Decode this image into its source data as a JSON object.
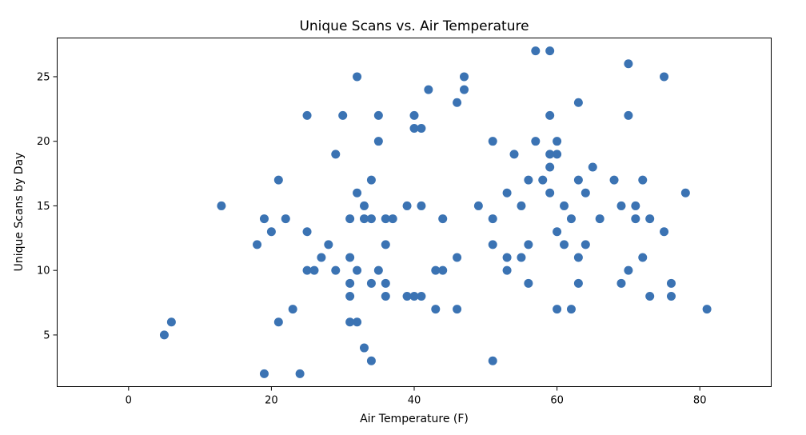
{
  "chart_data": {
    "type": "scatter",
    "title": "Unique Scans vs. Air Temperature",
    "xlabel": "Air Temperature (F)",
    "ylabel": "Unique Scans by Day",
    "xlim": [
      -10,
      90
    ],
    "ylim": [
      1,
      28
    ],
    "xticks": [
      0,
      20,
      40,
      60,
      80
    ],
    "yticks": [
      5,
      10,
      15,
      20,
      25
    ],
    "grid": false,
    "color": "#3b73b3",
    "series": [
      {
        "points": [
          [
            5,
            5
          ],
          [
            6,
            6
          ],
          [
            13,
            15
          ],
          [
            18,
            12
          ],
          [
            19,
            14
          ],
          [
            19,
            2
          ],
          [
            20,
            13
          ],
          [
            21,
            17
          ],
          [
            21,
            6
          ],
          [
            22,
            14
          ],
          [
            23,
            7
          ],
          [
            24,
            2
          ],
          [
            25,
            22
          ],
          [
            25,
            13
          ],
          [
            25,
            10
          ],
          [
            26,
            10
          ],
          [
            27,
            11
          ],
          [
            28,
            12
          ],
          [
            29,
            19
          ],
          [
            29,
            10
          ],
          [
            30,
            22
          ],
          [
            31,
            14
          ],
          [
            31,
            11
          ],
          [
            31,
            9
          ],
          [
            31,
            8
          ],
          [
            31,
            6
          ],
          [
            32,
            25
          ],
          [
            32,
            16
          ],
          [
            32,
            10
          ],
          [
            32,
            6
          ],
          [
            33,
            15
          ],
          [
            33,
            14
          ],
          [
            33,
            4
          ],
          [
            34,
            17
          ],
          [
            34,
            14
          ],
          [
            34,
            9
          ],
          [
            34,
            3
          ],
          [
            35,
            22
          ],
          [
            35,
            20
          ],
          [
            35,
            10
          ],
          [
            36,
            14
          ],
          [
            36,
            12
          ],
          [
            36,
            9
          ],
          [
            36,
            8
          ],
          [
            37,
            14
          ],
          [
            39,
            15
          ],
          [
            39,
            8
          ],
          [
            40,
            22
          ],
          [
            40,
            21
          ],
          [
            40,
            8
          ],
          [
            41,
            21
          ],
          [
            41,
            15
          ],
          [
            41,
            8
          ],
          [
            42,
            24
          ],
          [
            43,
            10
          ],
          [
            43,
            7
          ],
          [
            44,
            14
          ],
          [
            44,
            10
          ],
          [
            46,
            23
          ],
          [
            46,
            11
          ],
          [
            46,
            7
          ],
          [
            47,
            25
          ],
          [
            47,
            24
          ],
          [
            49,
            15
          ],
          [
            51,
            20
          ],
          [
            51,
            14
          ],
          [
            51,
            12
          ],
          [
            51,
            3
          ],
          [
            53,
            16
          ],
          [
            53,
            11
          ],
          [
            53,
            10
          ],
          [
            54,
            19
          ],
          [
            55,
            15
          ],
          [
            55,
            11
          ],
          [
            56,
            17
          ],
          [
            56,
            12
          ],
          [
            56,
            9
          ],
          [
            57,
            27
          ],
          [
            57,
            20
          ],
          [
            58,
            17
          ],
          [
            59,
            27
          ],
          [
            59,
            22
          ],
          [
            59,
            19
          ],
          [
            59,
            18
          ],
          [
            59,
            16
          ],
          [
            60,
            20
          ],
          [
            60,
            19
          ],
          [
            60,
            13
          ],
          [
            60,
            7
          ],
          [
            61,
            15
          ],
          [
            61,
            12
          ],
          [
            62,
            14
          ],
          [
            62,
            7
          ],
          [
            63,
            23
          ],
          [
            63,
            17
          ],
          [
            63,
            11
          ],
          [
            63,
            9
          ],
          [
            64,
            16
          ],
          [
            64,
            12
          ],
          [
            65,
            18
          ],
          [
            66,
            14
          ],
          [
            68,
            17
          ],
          [
            69,
            15
          ],
          [
            69,
            9
          ],
          [
            70,
            26
          ],
          [
            70,
            22
          ],
          [
            70,
            10
          ],
          [
            71,
            15
          ],
          [
            71,
            14
          ],
          [
            72,
            17
          ],
          [
            72,
            11
          ],
          [
            73,
            14
          ],
          [
            73,
            8
          ],
          [
            75,
            25
          ],
          [
            75,
            13
          ],
          [
            76,
            9
          ],
          [
            76,
            8
          ],
          [
            78,
            16
          ],
          [
            81,
            7
          ]
        ]
      }
    ]
  }
}
